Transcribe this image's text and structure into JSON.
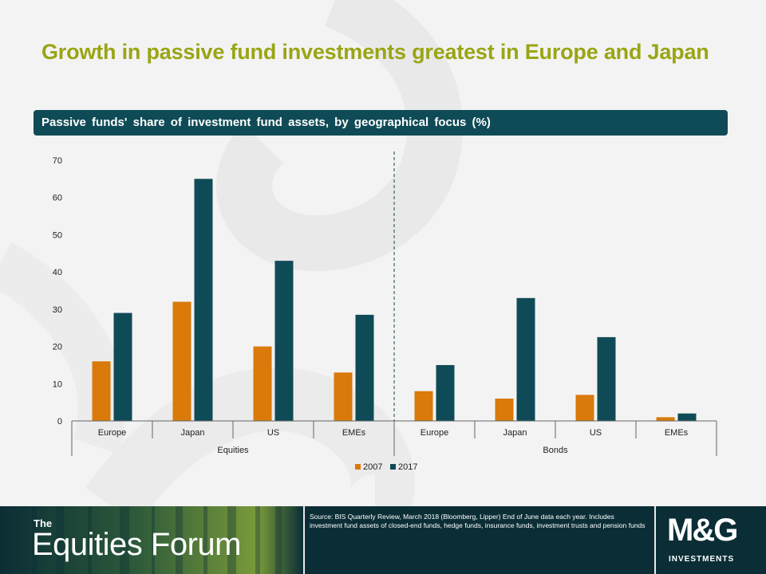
{
  "title": "Growth in passive fund investments greatest in Europe and Japan",
  "chart_header": "Passive funds' share of investment fund assets, by geographical focus (%)",
  "colors": {
    "s2007": "#d97a0b",
    "s2017": "#0f4b56",
    "title": "#9aa514",
    "footer": "#0b2e36"
  },
  "chart_data": {
    "type": "bar",
    "categories": [
      "Europe",
      "Japan",
      "US",
      "EMEs",
      "Europe",
      "Japan",
      "US",
      "EMEs"
    ],
    "groups": [
      {
        "label": "Equities",
        "count": 4
      },
      {
        "label": "Bonds",
        "count": 4
      }
    ],
    "series": [
      {
        "name": "2007",
        "values": [
          16,
          32,
          20,
          13,
          8,
          6,
          7,
          1
        ]
      },
      {
        "name": "2017",
        "values": [
          29,
          65,
          43,
          28.5,
          15,
          33,
          22.5,
          2
        ]
      }
    ],
    "ylim": [
      0,
      70
    ],
    "yticks": [
      0,
      10,
      20,
      30,
      40,
      50,
      60,
      70
    ],
    "legend": "bottom-center",
    "grid": false
  },
  "footer": {
    "brand_the": "The",
    "brand_name": "Equities Forum",
    "source": "Source: BIS Quarterly Review, March 2018 (Bloomberg, Lipper) End of June data each year. Includes investment fund assets of closed-end funds, hedge funds, insurance funds, investment trusts and pension funds",
    "logo": "M&G",
    "logo_sub": "INVESTMENTS"
  }
}
